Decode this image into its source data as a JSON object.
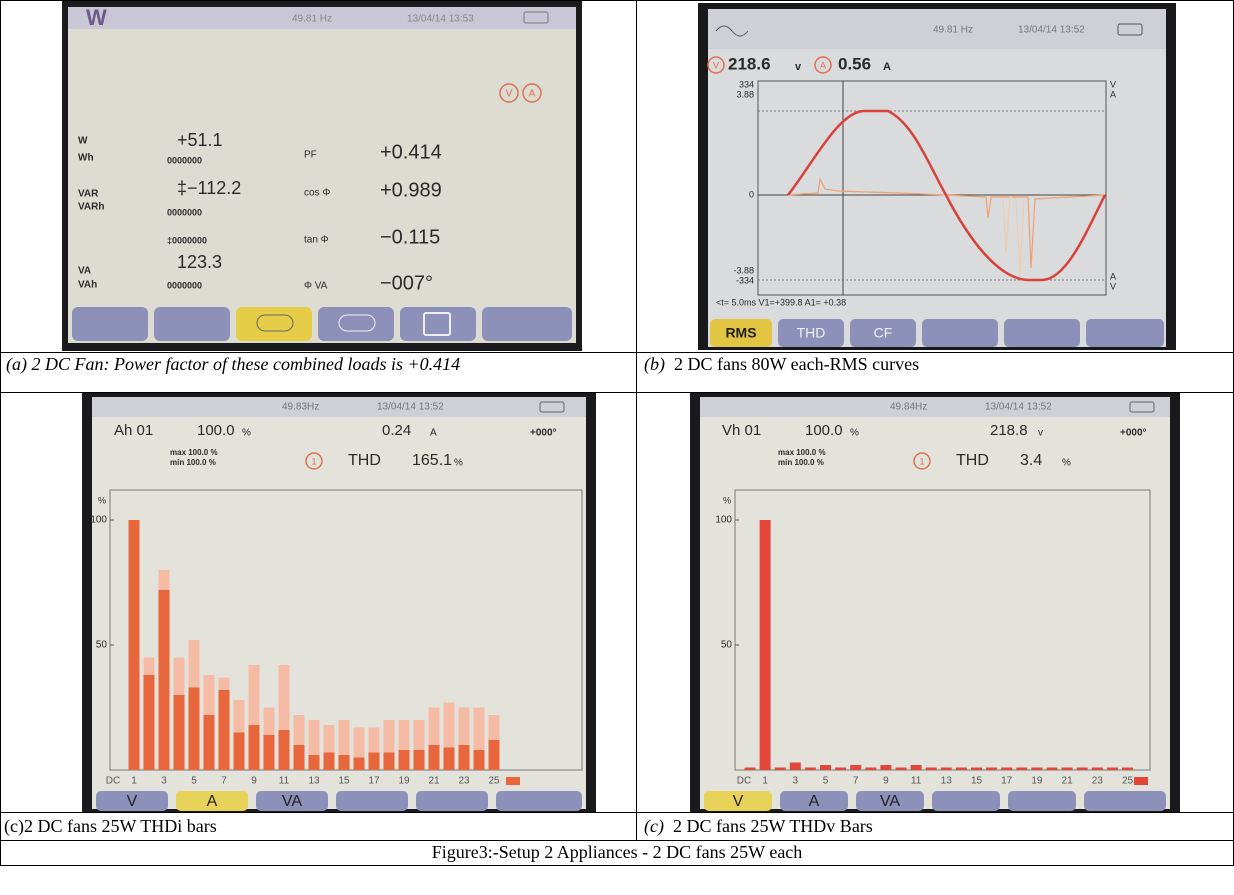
{
  "panel_a": {
    "caption": "(a) 2 DC Fan: Power factor of these combined loads is +0.414",
    "screen": {
      "mode": "W",
      "frequency": "49.81 Hz",
      "datetime": "13/04/14 13:53",
      "icons": [
        "V",
        "A"
      ],
      "left": [
        {
          "label": "W",
          "value": "+51.1"
        },
        {
          "label": "Wh",
          "value": "0000000"
        },
        {
          "label": "VAR",
          "value": "‡−112.2"
        },
        {
          "label": "VARh",
          "value": "0000000"
        },
        {
          "value": "‡0000000"
        },
        {
          "label": "VA",
          "value": "123.3"
        },
        {
          "label": "VAh",
          "value": "0000000"
        }
      ],
      "right": [
        {
          "label": "PF",
          "value": "+0.414"
        },
        {
          "label": "cos Φ",
          "value": "+0.989"
        },
        {
          "label": "tan Φ",
          "value": "−0.115"
        },
        {
          "label": "Φ VA",
          "value": "−007°"
        }
      ]
    }
  },
  "panel_b": {
    "caption_label": "(b)",
    "caption": "2 DC fans 80W each-RMS curves",
    "screen": {
      "frequency": "49.81 Hz",
      "datetime": "13/04/14 13:52",
      "icons": [
        "V",
        "A"
      ],
      "voltage": "218.6",
      "voltage_unit": "v",
      "current": "0.56",
      "current_unit": "A",
      "axis_left": [
        "334",
        "3.88",
        "0",
        "-3.88",
        "-334"
      ],
      "axis_right": [
        "V",
        "A",
        "A",
        "V"
      ],
      "cursor": "<t= 5.0ms  V1=+399.8  A1= +0.38",
      "buttons": [
        "RMS",
        "THD",
        "CF"
      ]
    }
  },
  "panel_c": {
    "caption": "(c)2 DC fans 25W THDi bars",
    "screen": {
      "frequency": "49.83Hz",
      "datetime": "13/04/14 13:52",
      "order": "Ah 01",
      "percent": "100.0",
      "percent_unit": "%",
      "reading": "0.24",
      "reading_unit": "A",
      "phase": "+000°",
      "max": "max 100.0 %",
      "min": "min 100.0 %",
      "icon": "1",
      "thd_label": "THD",
      "thd": "165.1",
      "thd_unit": "%",
      "buttons": [
        "V",
        "A",
        "VA"
      ]
    },
    "chart_data": {
      "type": "bar",
      "y_unit": "%",
      "categories": [
        "DC",
        "1",
        null,
        "3",
        null,
        "5",
        null,
        "7",
        null,
        "9",
        null,
        "11",
        null,
        "13",
        null,
        "15",
        null,
        "17",
        null,
        "19",
        null,
        "21",
        null,
        "23",
        null,
        "25"
      ],
      "values": [
        0,
        100,
        38,
        72,
        30,
        33,
        22,
        32,
        15,
        18,
        14,
        16,
        10,
        6,
        7,
        6,
        5,
        7,
        7,
        8,
        8,
        10,
        9,
        10,
        8,
        12
      ],
      "peak_values": [
        0,
        100,
        45,
        80,
        45,
        52,
        38,
        37,
        28,
        42,
        25,
        42,
        22,
        20,
        18,
        20,
        17,
        17,
        20,
        20,
        20,
        25,
        27,
        25,
        25,
        22
      ],
      "color": "#e8663c",
      "peak_color": "#f5bba5",
      "ylim": [
        0,
        112
      ],
      "yticks": [
        50,
        100
      ]
    }
  },
  "panel_d": {
    "caption_label": "(c)",
    "caption": "2 DC fans 25W THDv Bars",
    "screen": {
      "frequency": "49.84Hz",
      "datetime": "13/04/14 13:52",
      "order": "Vh 01",
      "percent": "100.0",
      "percent_unit": "%",
      "reading": "218.8",
      "reading_unit": "v",
      "phase": "+000°",
      "max": "max 100.0 %",
      "min": "min 100.0 %",
      "icon": "1",
      "thd_label": "THD",
      "thd": "3.4",
      "thd_unit": "%",
      "buttons": [
        "V",
        "A",
        "VA"
      ]
    },
    "chart_data": {
      "type": "bar",
      "y_unit": "%",
      "categories": [
        "DC",
        "1",
        null,
        "3",
        null,
        "5",
        null,
        "7",
        null,
        "9",
        null,
        "11",
        null,
        "13",
        null,
        "15",
        null,
        "17",
        null,
        "19",
        null,
        "21",
        null,
        "23",
        null,
        "25"
      ],
      "values": [
        1,
        100,
        1,
        3,
        1,
        2,
        1,
        2,
        1,
        2,
        1,
        2,
        1,
        1,
        1,
        1,
        1,
        1,
        1,
        1,
        1,
        1,
        1,
        1,
        1,
        1
      ],
      "color": "#e3473a",
      "ylim": [
        0,
        112
      ],
      "yticks": [
        50,
        100
      ]
    }
  },
  "figure_caption": "Figure3:-Setup 2  Appliances - 2 DC fans 25W each"
}
